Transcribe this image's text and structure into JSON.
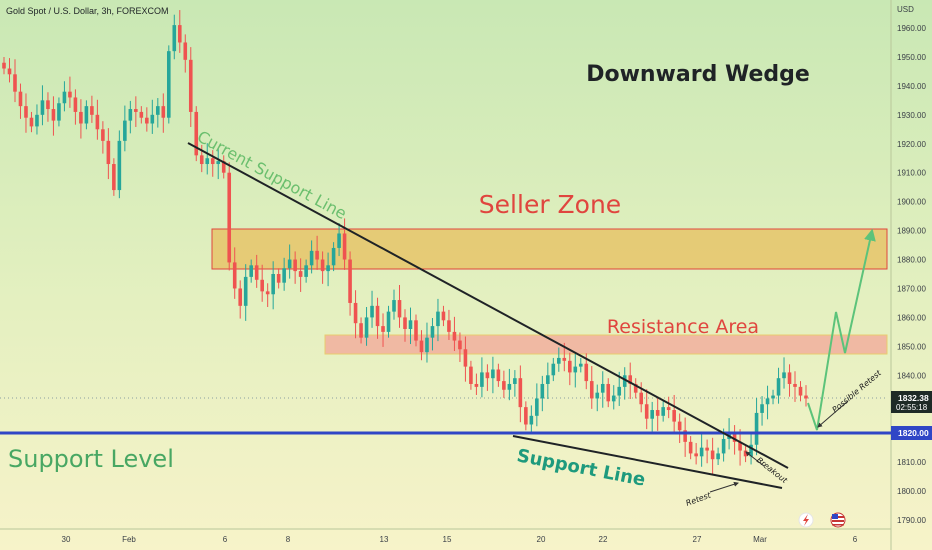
{
  "header": {
    "symbol_title": "Gold Spot / U.S. Dollar, 3h, FOREXCOM"
  },
  "price_axis": {
    "unit_label": "USD",
    "current_price": "1832.38",
    "countdown": "02:55:18",
    "support_value": "1820.00"
  },
  "annotations": {
    "pattern_title": "Downward Wedge",
    "seller_zone": "Seller Zone",
    "resistance_area": "Resistance Area",
    "support_level": "Support Level",
    "current_support_line": "Current Support Line",
    "support_line": "Support Line",
    "breakout": "Breakout",
    "retest": "Retest",
    "possible_retest": "Possible Retest"
  },
  "colors": {
    "up": "#26a69a",
    "down": "#ef5350",
    "support_level": "#2f46c6",
    "seller_zone_fill": "#e6c46a",
    "resistance_fill": "#f1b3a0",
    "projection": "#5cc37a",
    "current_support_text": "#6bbf6e",
    "support_line_text": "#1e9a7d",
    "support_level_text": "#48a763",
    "zone_text": "#e0453e"
  },
  "chart_data": {
    "type": "candlestick",
    "title": "Gold Spot / U.S. Dollar, 3h, FOREXCOM",
    "ylabel": "USD",
    "ylim": [
      1785,
      1975
    ],
    "grid": false,
    "y_ticks": [
      1790,
      1800,
      1810,
      1820,
      1830,
      1840,
      1850,
      1860,
      1870,
      1880,
      1890,
      1900,
      1910,
      1920,
      1930,
      1940,
      1950,
      1960
    ],
    "x_ticks": [
      "30",
      "Feb",
      "6",
      "8",
      "13",
      "15",
      "20",
      "22",
      "27",
      "Mar",
      "6"
    ],
    "candle_closes": [
      1946,
      1944,
      1938,
      1933,
      1929,
      1926,
      1930,
      1935,
      1932,
      1928,
      1934,
      1938,
      1936,
      1931,
      1927,
      1933,
      1930,
      1925,
      1921,
      1913,
      1904,
      1921,
      1928,
      1932,
      1931,
      1929,
      1927,
      1930,
      1933,
      1929,
      1952,
      1961,
      1955,
      1949,
      1931,
      1916,
      1913,
      1915,
      1913,
      1914,
      1910,
      1879,
      1870,
      1864,
      1874,
      1878,
      1873,
      1869,
      1868,
      1875,
      1872,
      1877,
      1880,
      1876,
      1874,
      1878,
      1883,
      1880,
      1876,
      1878,
      1884,
      1889,
      1880,
      1865,
      1858,
      1853,
      1860,
      1864,
      1857,
      1855,
      1862,
      1866,
      1860,
      1856,
      1859,
      1852,
      1848,
      1853,
      1857,
      1862,
      1859,
      1855,
      1852,
      1849,
      1843,
      1837,
      1836,
      1841,
      1839,
      1842,
      1838,
      1835,
      1837,
      1839,
      1829,
      1823,
      1826,
      1832,
      1837,
      1840,
      1844,
      1846,
      1845,
      1841,
      1843,
      1844,
      1838,
      1832,
      1834,
      1837,
      1831,
      1833,
      1836,
      1840,
      1837,
      1834,
      1830,
      1825,
      1828,
      1826,
      1829,
      1828,
      1824,
      1821,
      1817,
      1813,
      1812,
      1815,
      1814,
      1811,
      1813,
      1818,
      1820,
      1817,
      1814,
      1812,
      1816,
      1827,
      1830,
      1832,
      1833,
      1839,
      1841,
      1837,
      1836,
      1833,
      1832
    ],
    "levels": [
      {
        "name": "Support Level",
        "y": 1820
      }
    ],
    "zones": [
      {
        "name": "Seller Zone",
        "y_low": 1877,
        "y_high": 1891
      },
      {
        "name": "Resistance Area",
        "y_low": 1848,
        "y_high": 1854
      }
    ],
    "trendlines": [
      {
        "name": "Current Support Line",
        "from": {
          "i": 0,
          "y": 1920
        },
        "to": {
          "i": 1,
          "y": 1808
        }
      },
      {
        "name": "Support Line",
        "from": {
          "i": 0,
          "y": 1818
        },
        "to": {
          "i": 1,
          "y": 1801
        }
      }
    ],
    "projection_path_prices": [
      1829,
      1820,
      1857,
      1847,
      1889
    ],
    "markers": [
      "Breakout",
      "Retest",
      "Possible Retest"
    ]
  }
}
